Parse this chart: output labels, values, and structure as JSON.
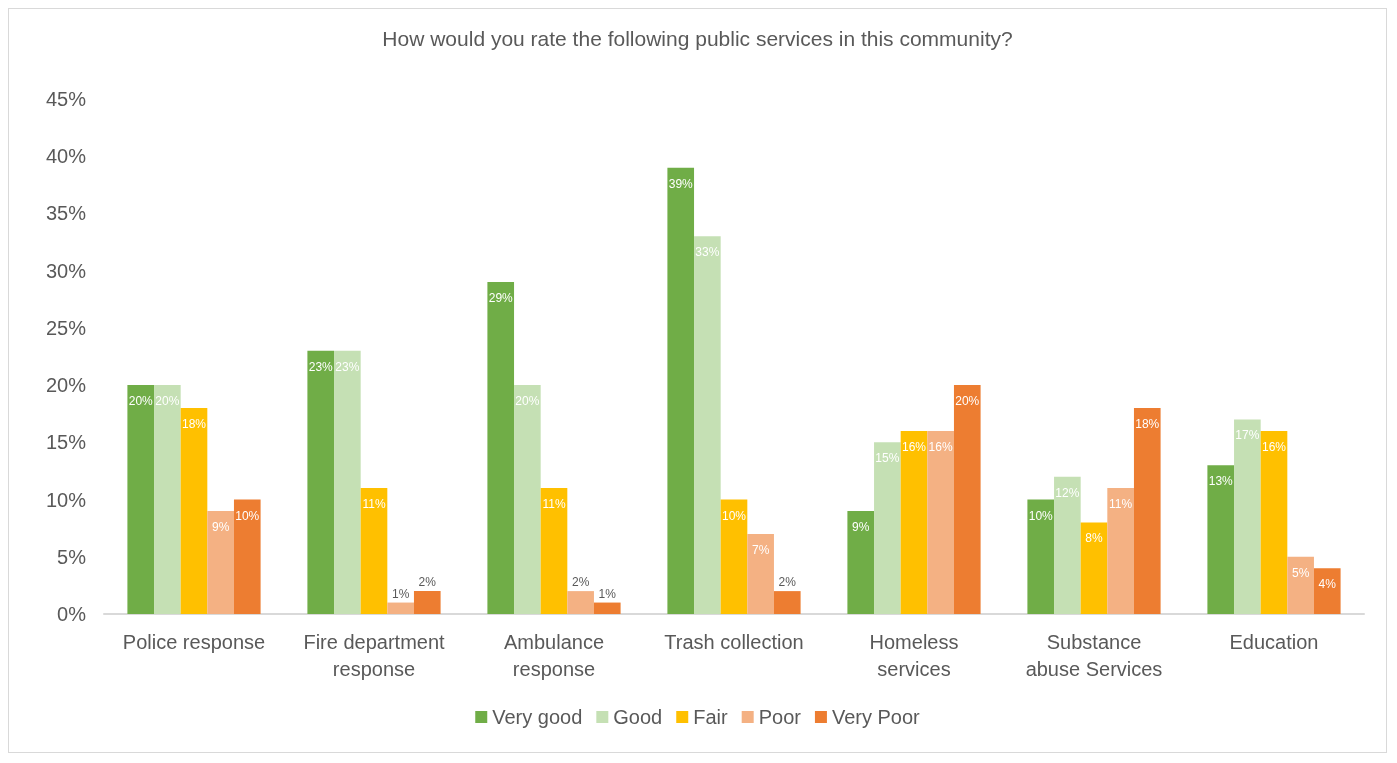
{
  "chart_data": {
    "type": "bar",
    "title": "How would you rate the following public services in this community?",
    "categories": [
      "Police response",
      "Fire department\nresponse",
      "Ambulance\nresponse",
      "Trash collection",
      "Homeless\nservices",
      "Substance\nabuse Services",
      "Education"
    ],
    "series": [
      {
        "name": "Very good",
        "color": "#70ad47",
        "values": [
          20,
          23,
          29,
          39,
          9,
          10,
          13
        ],
        "value_labels": [
          "20%",
          "23%",
          "29%",
          "39%",
          "9%",
          "10%",
          "13%"
        ]
      },
      {
        "name": "Good",
        "color": "#c5e0b4",
        "values": [
          20,
          23,
          20,
          33,
          15,
          12,
          17
        ],
        "value_labels": [
          "20%",
          "23%",
          "20%",
          "33%",
          "15%",
          "12%",
          "17%"
        ]
      },
      {
        "name": "Fair",
        "color": "#ffc000",
        "values": [
          18,
          11,
          11,
          10,
          16,
          8,
          16
        ],
        "value_labels": [
          "18%",
          "11%",
          "11%",
          "10%",
          "16%",
          "8%",
          "16%"
        ]
      },
      {
        "name": "Poor",
        "color": "#f4b183",
        "values": [
          9,
          1,
          2,
          7,
          16,
          11,
          5
        ],
        "value_labels": [
          "9%",
          "1%",
          "2%",
          "7%",
          "16%",
          "11%",
          "5%"
        ]
      },
      {
        "name": "Very Poor",
        "color": "#ed7d31",
        "values": [
          10,
          2,
          1,
          2,
          20,
          18,
          4
        ],
        "value_labels": [
          "10%",
          "2%",
          "1%",
          "2%",
          "20%",
          "18%",
          "4%"
        ]
      }
    ],
    "ylim": [
      0,
      45
    ],
    "yticks": [
      {
        "value": 0,
        "label": "0%"
      },
      {
        "value": 5,
        "label": "5%"
      },
      {
        "value": 10,
        "label": "10%"
      },
      {
        "value": 15,
        "label": "15%"
      },
      {
        "value": 20,
        "label": "20%"
      },
      {
        "value": 25,
        "label": "25%"
      },
      {
        "value": 30,
        "label": "30%"
      },
      {
        "value": 35,
        "label": "35%"
      },
      {
        "value": 40,
        "label": "40%"
      },
      {
        "value": 45,
        "label": "45%"
      }
    ],
    "grid": false,
    "legend": "bottom"
  }
}
